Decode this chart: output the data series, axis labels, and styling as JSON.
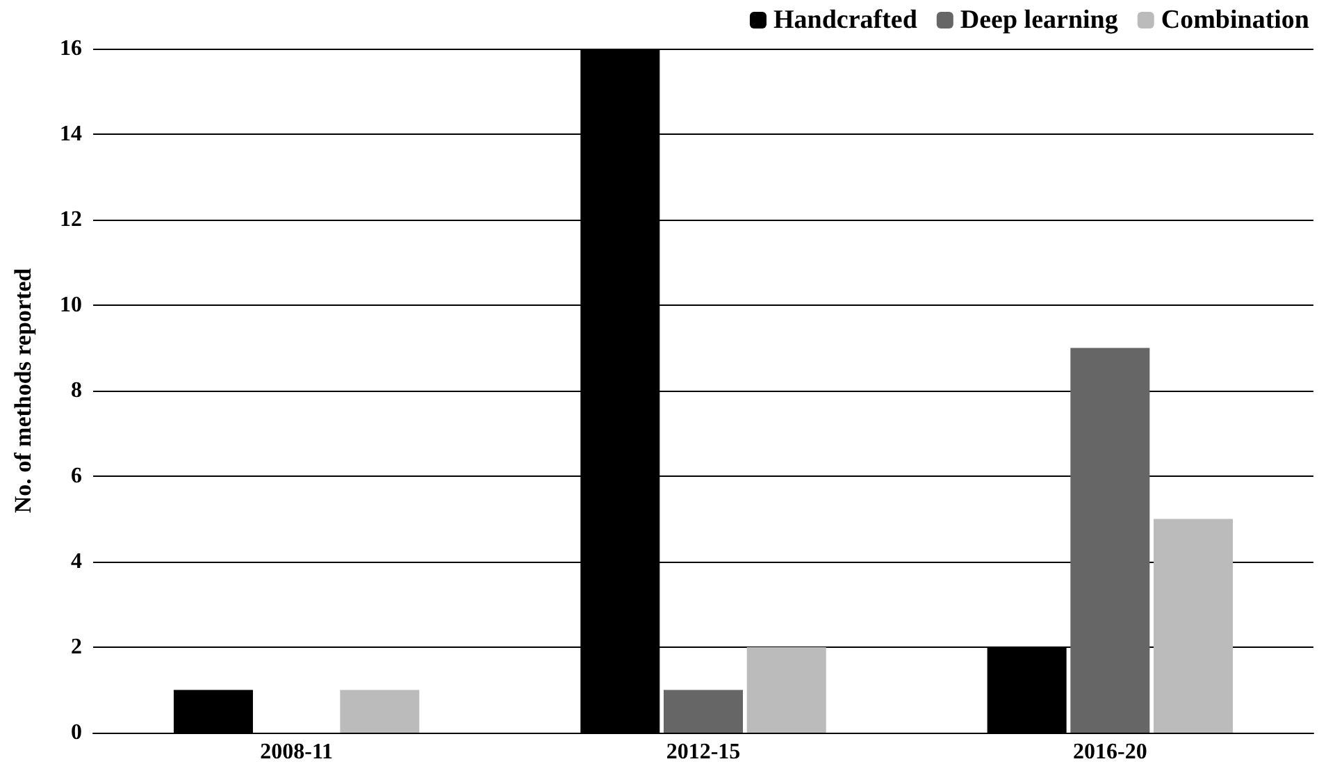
{
  "chart_data": {
    "type": "bar",
    "ylabel": "No. of methods reported",
    "categories": [
      "2008-11",
      "2012-15",
      "2016-20"
    ],
    "series": [
      {
        "name": "Handcrafted",
        "color": "#000000",
        "values": [
          1,
          16,
          2
        ]
      },
      {
        "name": "Deep learning",
        "color": "#666666",
        "values": [
          0,
          1,
          9
        ]
      },
      {
        "name": "Combination",
        "color": "#bbbbbb",
        "values": [
          1,
          2,
          5
        ]
      }
    ],
    "ylim": [
      0,
      16
    ],
    "yticks": [
      0,
      2,
      4,
      6,
      8,
      10,
      12,
      14,
      16
    ],
    "grid": "y",
    "legend": "top right"
  }
}
